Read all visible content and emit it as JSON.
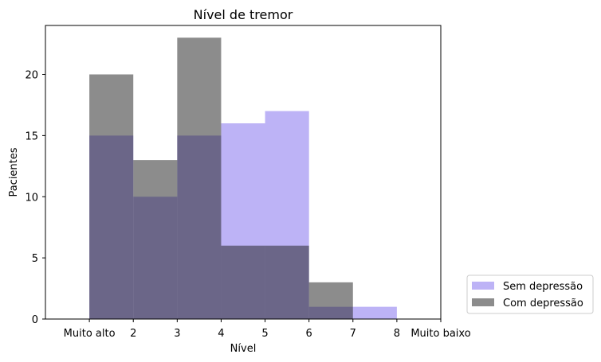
{
  "chart_data": {
    "type": "bar",
    "title": "Nível de tremor",
    "xlabel": "Nível",
    "ylabel": "Pacientes",
    "xlim": [
      0,
      9
    ],
    "ylim": [
      0,
      24
    ],
    "x_ticks": [
      {
        "value": 1,
        "label": "Muito alto"
      },
      {
        "value": 2,
        "label": "2"
      },
      {
        "value": 3,
        "label": "3"
      },
      {
        "value": 4,
        "label": "4"
      },
      {
        "value": 5,
        "label": "5"
      },
      {
        "value": 6,
        "label": "6"
      },
      {
        "value": 7,
        "label": "7"
      },
      {
        "value": 8,
        "label": "8"
      },
      {
        "value": 9,
        "label": "Muito baixo"
      }
    ],
    "y_ticks": [
      0,
      5,
      10,
      15,
      20
    ],
    "bins": [
      [
        1,
        2
      ],
      [
        2,
        3
      ],
      [
        3,
        4
      ],
      [
        4,
        5
      ],
      [
        5,
        6
      ],
      [
        6,
        7
      ],
      [
        7,
        8
      ]
    ],
    "series": [
      {
        "name": "Sem depressão",
        "color": "#7b68ee",
        "opacity": 0.5,
        "values": [
          15,
          10,
          15,
          16,
          17,
          1,
          1
        ]
      },
      {
        "name": "Com depressão",
        "color": "#1a1a1a",
        "opacity": 0.5,
        "values": [
          20,
          13,
          23,
          6,
          6,
          3,
          0
        ]
      }
    ],
    "grid": false,
    "legend_position": "outside-lower-right"
  }
}
